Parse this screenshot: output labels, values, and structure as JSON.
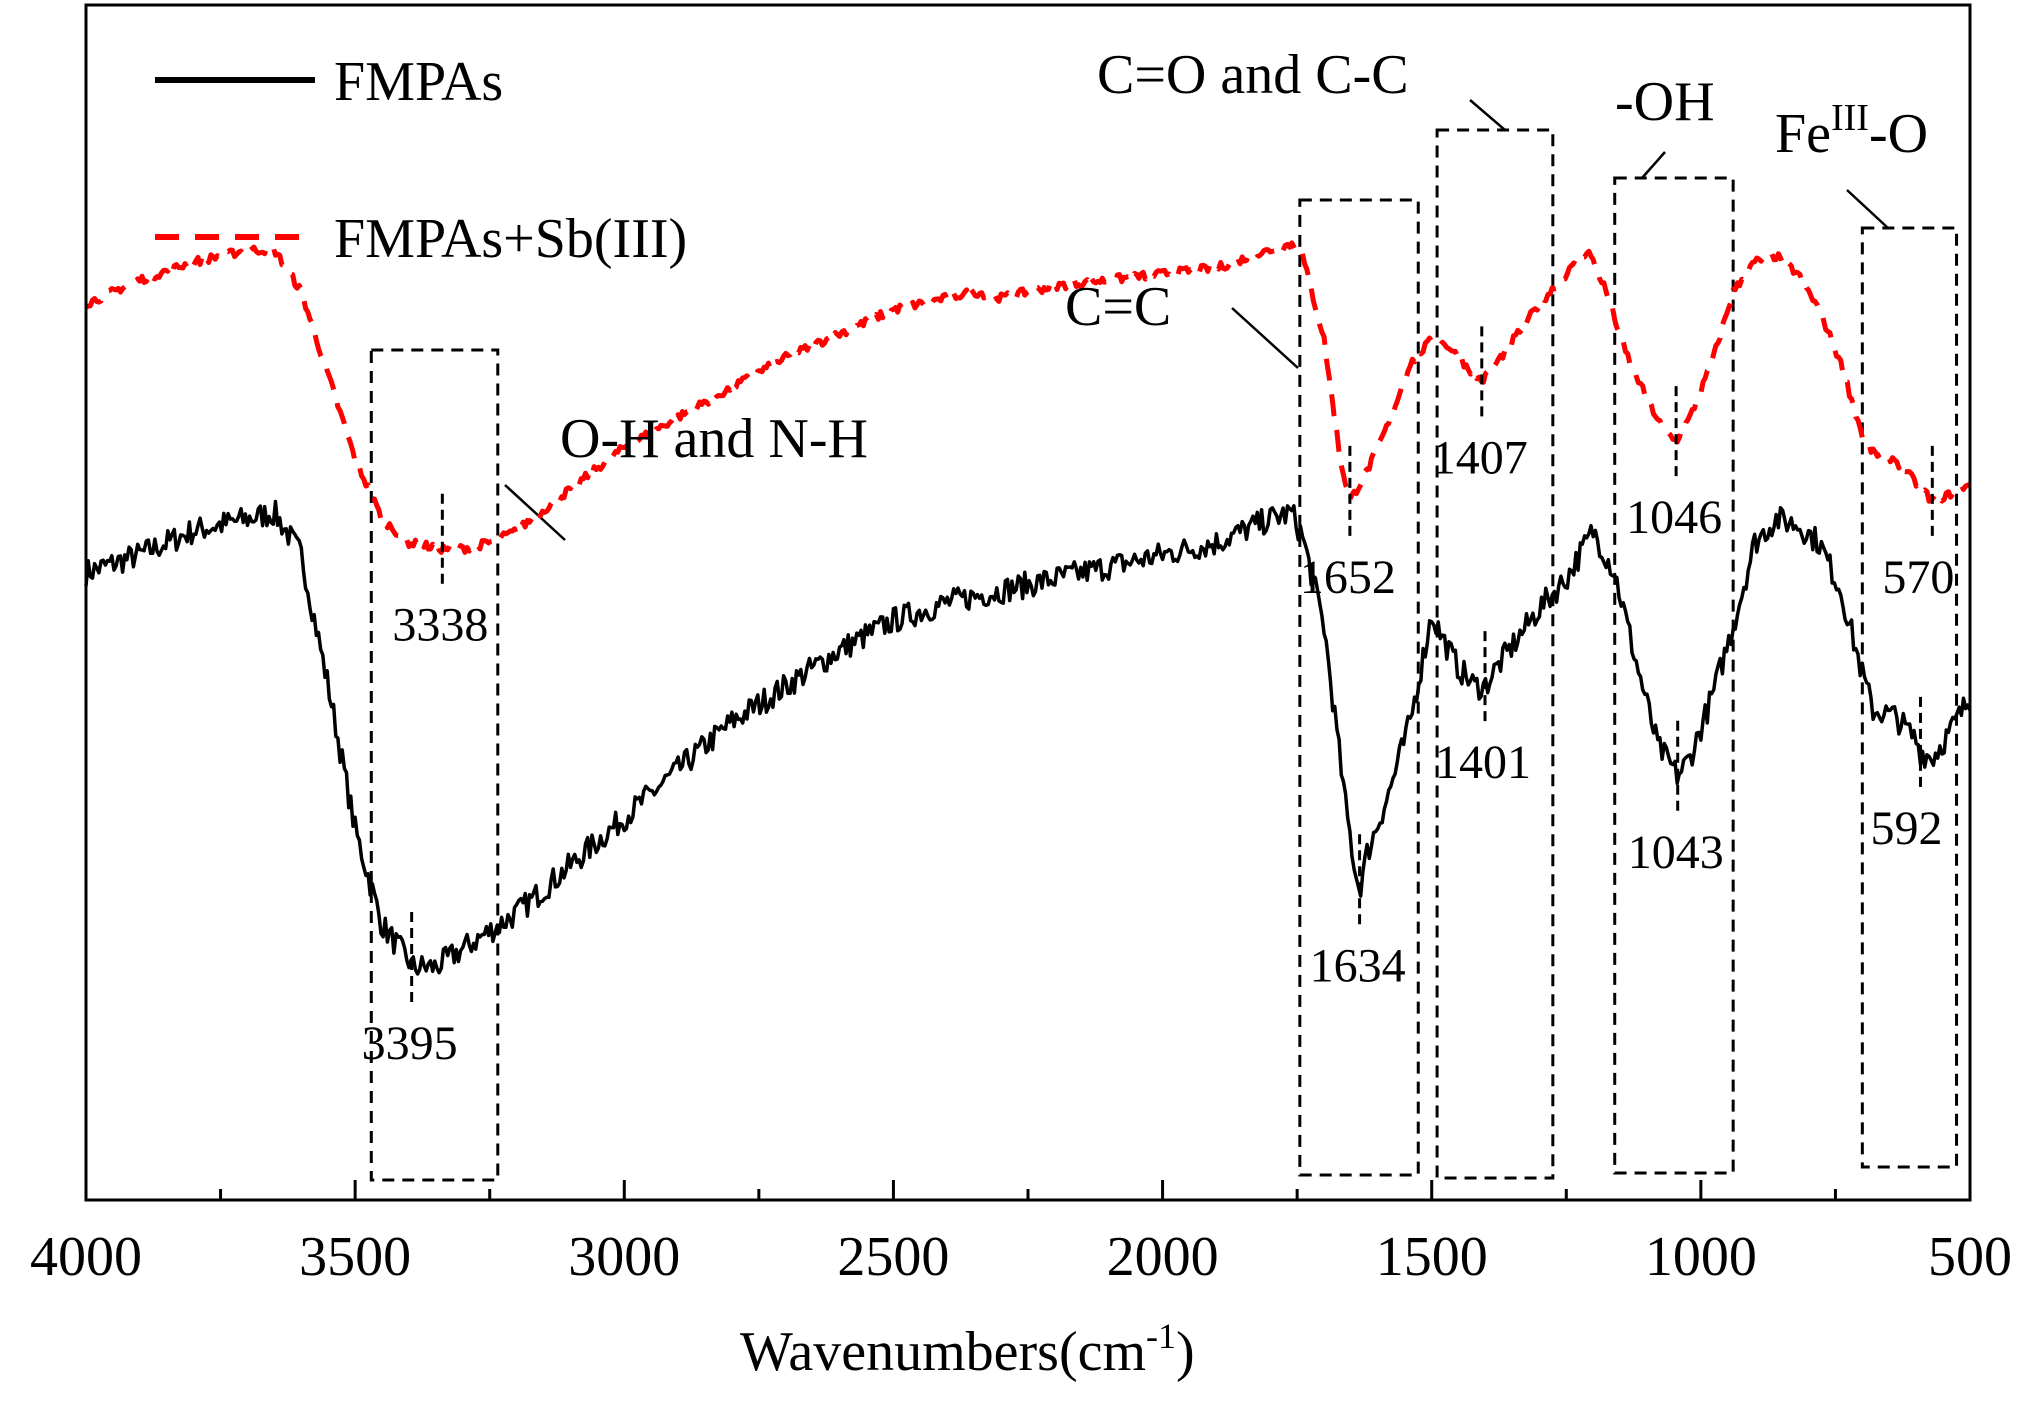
{
  "chart_data": {
    "type": "line",
    "title": "",
    "xlabel": "Wavenumbers(cm",
    "xlabel_sup": "-1",
    "ylabel": "",
    "xlim": [
      4000,
      500
    ],
    "x_reversed": true,
    "x_ticks": [
      4000,
      3500,
      3000,
      2500,
      2000,
      1500,
      1000,
      500
    ],
    "x_tick_labels": [
      "4000",
      "3500",
      "3000",
      "2500",
      "2000",
      "1500",
      "1000",
      "500"
    ],
    "y_ticks_shown": false,
    "ylim": [
      0,
      100
    ],
    "grid": false,
    "legend_position": "top-left",
    "series": [
      {
        "name": "FMPAs",
        "color": "#000000",
        "style": "solid",
        "noise": 2.2,
        "x": [
          4000,
          3900,
          3800,
          3700,
          3650,
          3600,
          3550,
          3500,
          3450,
          3400,
          3395,
          3350,
          3300,
          3200,
          3100,
          3000,
          2900,
          2800,
          2700,
          2600,
          2500,
          2400,
          2350,
          2300,
          2200,
          2100,
          2000,
          1900,
          1800,
          1760,
          1740,
          1700,
          1660,
          1640,
          1634,
          1620,
          1580,
          1540,
          1500,
          1480,
          1450,
          1420,
          1401,
          1380,
          1340,
          1300,
          1250,
          1200,
          1160,
          1120,
          1080,
          1043,
          1020,
          980,
          940,
          900,
          860,
          820,
          780,
          740,
          700,
          680,
          640,
          600,
          592,
          570,
          540,
          500
        ],
        "y": [
          52.5,
          54,
          56,
          57,
          57.5,
          54,
          43,
          31,
          23,
          20,
          19.5,
          19.5,
          21,
          24,
          28,
          32,
          36,
          40,
          43,
          46,
          48.5,
          50,
          50.5,
          51,
          52,
          53,
          54,
          55,
          57,
          57.5,
          55.5,
          48,
          33,
          27,
          26,
          29,
          34,
          40,
          49,
          47,
          44.5,
          43,
          43,
          44.5,
          47,
          49.5,
          52,
          56,
          52.5,
          45,
          38,
          35.5,
          37,
          42,
          48,
          55,
          57,
          56.5,
          55,
          51,
          44,
          41,
          40.5,
          38.5,
          37.5,
          37,
          39,
          42
        ]
      },
      {
        "name": "FMPAs+Sb(III)",
        "color": "#ff0000",
        "style": "dashed",
        "noise": 0.7,
        "x": [
          4000,
          3900,
          3800,
          3700,
          3650,
          3600,
          3550,
          3500,
          3450,
          3400,
          3338,
          3300,
          3250,
          3200,
          3100,
          3000,
          2900,
          2800,
          2700,
          2600,
          2500,
          2400,
          2350,
          2300,
          2200,
          2100,
          2000,
          1900,
          1800,
          1760,
          1740,
          1700,
          1670,
          1652,
          1620,
          1580,
          1540,
          1500,
          1470,
          1440,
          1407,
          1380,
          1340,
          1300,
          1250,
          1210,
          1180,
          1140,
          1100,
          1070,
          1046,
          1020,
          980,
          940,
          900,
          860,
          820,
          780,
          740,
          700,
          680,
          640,
          600,
          570,
          540,
          500
        ],
        "y": [
          75,
          77,
          78.5,
          79.5,
          79.5,
          76,
          69,
          62,
          57,
          55,
          54.5,
          54.5,
          55,
          56,
          59.5,
          63,
          65.5,
          68,
          70.5,
          72.5,
          74.5,
          75.5,
          76,
          75.5,
          76.5,
          77,
          77.5,
          78,
          79.5,
          80,
          79,
          72,
          62,
          58.5,
          61,
          65,
          70,
          72,
          71.5,
          70,
          68.5,
          70,
          72.5,
          75,
          77.5,
          79.5,
          76.5,
          71,
          67,
          64.5,
          63.5,
          65.5,
          70,
          76,
          78.5,
          79,
          77.5,
          74.5,
          70,
          64,
          62.5,
          62,
          60,
          58.5,
          59,
          60
        ]
      }
    ],
    "peak_labels": [
      {
        "text": "3338",
        "x": 3338,
        "series": "FMPAs+Sb(III)"
      },
      {
        "text": "1652",
        "x": 1652,
        "series": "FMPAs+Sb(III)"
      },
      {
        "text": "1407",
        "x": 1407,
        "series": "FMPAs+Sb(III)"
      },
      {
        "text": "1046",
        "x": 1046,
        "series": "FMPAs+Sb(III)"
      },
      {
        "text": "570",
        "x": 570,
        "series": "FMPAs+Sb(III)"
      },
      {
        "text": "3395",
        "x": 3395,
        "series": "FMPAs"
      },
      {
        "text": "1634",
        "x": 1634,
        "series": "FMPAs"
      },
      {
        "text": "1401",
        "x": 1401,
        "series": "FMPAs"
      },
      {
        "text": "1043",
        "x": 1043,
        "series": "FMPAs"
      },
      {
        "text": "592",
        "x": 592,
        "series": "FMPAs"
      }
    ],
    "group_annotations": [
      {
        "label": "O-H and N-H",
        "x_from": 3470,
        "x_to": 3235
      },
      {
        "label": "C=C",
        "x_from": 1745,
        "x_to": 1525
      },
      {
        "label": "C=O and C-C",
        "x_from": 1490,
        "x_to": 1275
      },
      {
        "label": "-OH",
        "x_from": 1160,
        "x_to": 940
      },
      {
        "label": "Fe",
        "label_sup": "III",
        "label_suffix": "-O",
        "x_from": 700,
        "x_to": 525
      }
    ]
  }
}
